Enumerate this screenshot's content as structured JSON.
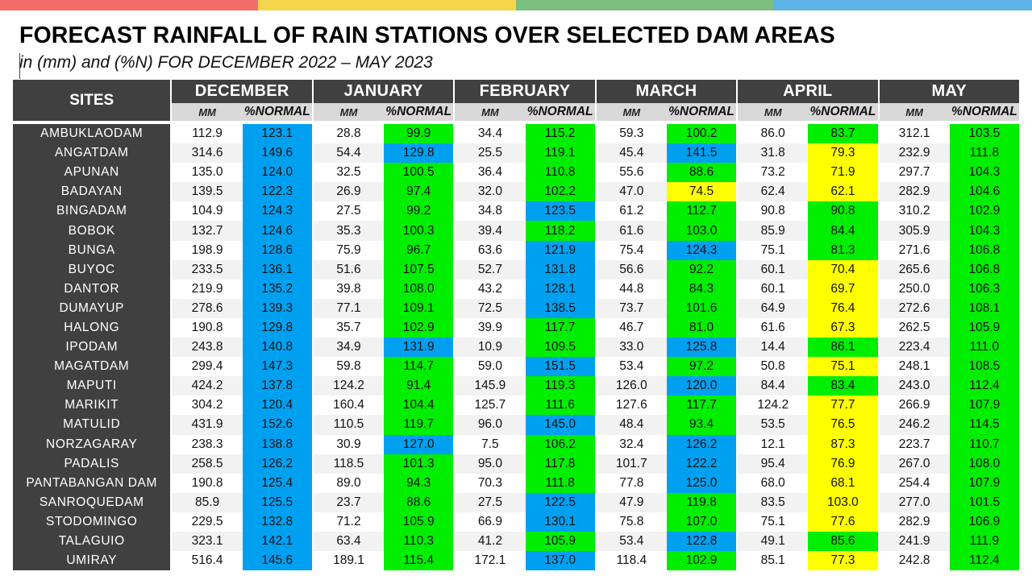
{
  "title": "FORECAST RAINFALL OF RAIN STATIONS OVER SELECTED DAM AREAS",
  "subtitle": "in (mm) and (%N) FOR DECEMBER 2022 – MAY 2023",
  "colors": {
    "top_bar": [
      "#f26b6b",
      "#f7d54a",
      "#7dbf7f",
      "#5bb3e6"
    ],
    "header_bg": "#404040",
    "subheader_bg": "#d9d9d9",
    "blue": "#00a0f0",
    "green": "#00ee00",
    "yellow": "#ffff00"
  },
  "table": {
    "sites_header": "SITES",
    "months": [
      "DECEMBER",
      "JANUARY",
      "FEBRUARY",
      "MARCH",
      "APRIL",
      "MAY"
    ],
    "sub_mm": "MM",
    "sub_pn": "%NORMAL",
    "rows": [
      {
        "site": "AMBUKLAODAM",
        "v": [
          [
            "112.9",
            "123.1",
            "b"
          ],
          [
            "28.8",
            "99.9",
            "g"
          ],
          [
            "34.4",
            "115.2",
            "g"
          ],
          [
            "59.3",
            "100.2",
            "g"
          ],
          [
            "86.0",
            "83.7",
            "g"
          ],
          [
            "312.1",
            "103.5",
            "g"
          ]
        ]
      },
      {
        "site": "ANGATDAM",
        "v": [
          [
            "314.6",
            "149.6",
            "b"
          ],
          [
            "54.4",
            "129.8",
            "b"
          ],
          [
            "25.5",
            "119.1",
            "g"
          ],
          [
            "45.4",
            "141.5",
            "b"
          ],
          [
            "31.8",
            "79.3",
            "y"
          ],
          [
            "232.9",
            "111.8",
            "g"
          ]
        ]
      },
      {
        "site": "APUNAN",
        "v": [
          [
            "135.0",
            "124.0",
            "b"
          ],
          [
            "32.5",
            "100.5",
            "g"
          ],
          [
            "36.4",
            "110.8",
            "g"
          ],
          [
            "55.6",
            "88.6",
            "g"
          ],
          [
            "73.2",
            "71.9",
            "y"
          ],
          [
            "297.7",
            "104.3",
            "g"
          ]
        ]
      },
      {
        "site": "BADAYAN",
        "v": [
          [
            "139.5",
            "122.3",
            "b"
          ],
          [
            "26.9",
            "97.4",
            "g"
          ],
          [
            "32.0",
            "102.2",
            "g"
          ],
          [
            "47.0",
            "74.5",
            "y"
          ],
          [
            "62.4",
            "62.1",
            "y"
          ],
          [
            "282.9",
            "104.6",
            "g"
          ]
        ]
      },
      {
        "site": "BINGADAM",
        "v": [
          [
            "104.9",
            "124.3",
            "b"
          ],
          [
            "27.5",
            "99.2",
            "g"
          ],
          [
            "34.8",
            "123.5",
            "b"
          ],
          [
            "61.2",
            "112.7",
            "g"
          ],
          [
            "90.8",
            "90.8",
            "g"
          ],
          [
            "310.2",
            "102.9",
            "g"
          ]
        ]
      },
      {
        "site": "BOBOK",
        "v": [
          [
            "132.7",
            "124.6",
            "b"
          ],
          [
            "35.3",
            "100.3",
            "g"
          ],
          [
            "39.4",
            "118.2",
            "g"
          ],
          [
            "61.6",
            "103.0",
            "g"
          ],
          [
            "85.9",
            "84.4",
            "g"
          ],
          [
            "305.9",
            "104.3",
            "g"
          ]
        ]
      },
      {
        "site": "BUNGA",
        "v": [
          [
            "198.9",
            "128.6",
            "b"
          ],
          [
            "75.9",
            "96.7",
            "g"
          ],
          [
            "63.6",
            "121.9",
            "b"
          ],
          [
            "75.4",
            "124.3",
            "b"
          ],
          [
            "75.1",
            "81.3",
            "g"
          ],
          [
            "271.6",
            "106.8",
            "g"
          ]
        ]
      },
      {
        "site": "BUYOC",
        "v": [
          [
            "233.5",
            "136.1",
            "b"
          ],
          [
            "51.6",
            "107.5",
            "g"
          ],
          [
            "52.7",
            "131.8",
            "b"
          ],
          [
            "56.6",
            "92.2",
            "g"
          ],
          [
            "60.1",
            "70.4",
            "y"
          ],
          [
            "265.6",
            "106.8",
            "g"
          ]
        ]
      },
      {
        "site": "DANTOR",
        "v": [
          [
            "219.9",
            "135.2",
            "b"
          ],
          [
            "39.8",
            "108.0",
            "g"
          ],
          [
            "43.2",
            "128.1",
            "b"
          ],
          [
            "44.8",
            "84.3",
            "g"
          ],
          [
            "60.1",
            "69.7",
            "y"
          ],
          [
            "250.0",
            "106.3",
            "g"
          ]
        ]
      },
      {
        "site": "DUMAYUP",
        "v": [
          [
            "278.6",
            "139.3",
            "b"
          ],
          [
            "77.1",
            "109.1",
            "g"
          ],
          [
            "72.5",
            "138.5",
            "b"
          ],
          [
            "73.7",
            "101.6",
            "g"
          ],
          [
            "64.9",
            "76.4",
            "y"
          ],
          [
            "272.6",
            "108.1",
            "g"
          ]
        ]
      },
      {
        "site": "HALONG",
        "v": [
          [
            "190.8",
            "129.8",
            "b"
          ],
          [
            "35.7",
            "102.9",
            "g"
          ],
          [
            "39.9",
            "117.7",
            "g"
          ],
          [
            "46.7",
            "81.0",
            "g"
          ],
          [
            "61.6",
            "67.3",
            "y"
          ],
          [
            "262.5",
            "105.9",
            "g"
          ]
        ]
      },
      {
        "site": "IPODAM",
        "v": [
          [
            "243.8",
            "140.8",
            "b"
          ],
          [
            "34.9",
            "131.9",
            "b"
          ],
          [
            "10.9",
            "109.5",
            "g"
          ],
          [
            "33.0",
            "125.8",
            "b"
          ],
          [
            "14.4",
            "86.1",
            "g"
          ],
          [
            "223.4",
            "111.0",
            "g"
          ]
        ]
      },
      {
        "site": "MAGATDAM",
        "v": [
          [
            "299.4",
            "147.3",
            "b"
          ],
          [
            "59.8",
            "114.7",
            "g"
          ],
          [
            "59.0",
            "151.5",
            "b"
          ],
          [
            "53.4",
            "97.2",
            "g"
          ],
          [
            "50.8",
            "75.1",
            "y"
          ],
          [
            "248.1",
            "108.5",
            "g"
          ]
        ]
      },
      {
        "site": "MAPUTI",
        "v": [
          [
            "424.2",
            "137.8",
            "b"
          ],
          [
            "124.2",
            "91.4",
            "g"
          ],
          [
            "145.9",
            "119.3",
            "g"
          ],
          [
            "126.0",
            "120.0",
            "b"
          ],
          [
            "84.4",
            "83.4",
            "g"
          ],
          [
            "243.0",
            "112.4",
            "g"
          ]
        ]
      },
      {
        "site": "MARIKIT",
        "v": [
          [
            "304.2",
            "120.4",
            "b"
          ],
          [
            "160.4",
            "104.4",
            "g"
          ],
          [
            "125.7",
            "111.6",
            "g"
          ],
          [
            "127.6",
            "117.7",
            "g"
          ],
          [
            "124.2",
            "77.7",
            "y"
          ],
          [
            "266.9",
            "107.9",
            "g"
          ]
        ]
      },
      {
        "site": "MATULID",
        "v": [
          [
            "431.9",
            "152.6",
            "b"
          ],
          [
            "110.5",
            "119.7",
            "g"
          ],
          [
            "96.0",
            "145.0",
            "b"
          ],
          [
            "48.4",
            "93.4",
            "g"
          ],
          [
            "53.5",
            "76.5",
            "y"
          ],
          [
            "246.2",
            "114.5",
            "g"
          ]
        ]
      },
      {
        "site": "NORZAGARAY",
        "v": [
          [
            "238.3",
            "138.8",
            "b"
          ],
          [
            "30.9",
            "127.0",
            "b"
          ],
          [
            "7.5",
            "106.2",
            "g"
          ],
          [
            "32.4",
            "126.2",
            "b"
          ],
          [
            "12.1",
            "87.3",
            "y"
          ],
          [
            "223.7",
            "110.7",
            "g"
          ]
        ]
      },
      {
        "site": "PADALIS",
        "v": [
          [
            "258.5",
            "126.2",
            "b"
          ],
          [
            "118.5",
            "101.3",
            "g"
          ],
          [
            "95.0",
            "117.8",
            "g"
          ],
          [
            "101.7",
            "122.2",
            "b"
          ],
          [
            "95.4",
            "76.9",
            "y"
          ],
          [
            "267.0",
            "108.0",
            "g"
          ]
        ]
      },
      {
        "site": "PANTABANGAN DAM",
        "v": [
          [
            "190.8",
            "125.4",
            "b"
          ],
          [
            "89.0",
            "94.3",
            "g"
          ],
          [
            "70.3",
            "111.8",
            "g"
          ],
          [
            "77.8",
            "125.0",
            "b"
          ],
          [
            "68.0",
            "68.1",
            "y"
          ],
          [
            "254.4",
            "107.9",
            "g"
          ]
        ]
      },
      {
        "site": "SANROQUEDAM",
        "v": [
          [
            "85.9",
            "125.5",
            "b"
          ],
          [
            "23.7",
            "88.6",
            "g"
          ],
          [
            "27.5",
            "122.5",
            "b"
          ],
          [
            "47.9",
            "119.8",
            "g"
          ],
          [
            "83.5",
            "103.0",
            "y"
          ],
          [
            "277.0",
            "101.5",
            "g"
          ]
        ]
      },
      {
        "site": "STODOMINGO",
        "v": [
          [
            "229.5",
            "132.8",
            "b"
          ],
          [
            "71.2",
            "105.9",
            "g"
          ],
          [
            "66.9",
            "130.1",
            "b"
          ],
          [
            "75.8",
            "107.0",
            "g"
          ],
          [
            "75.1",
            "77.6",
            "y"
          ],
          [
            "282.9",
            "106.9",
            "g"
          ]
        ]
      },
      {
        "site": "TALAGUIO",
        "v": [
          [
            "323.1",
            "142.1",
            "b"
          ],
          [
            "63.4",
            "110.3",
            "g"
          ],
          [
            "41.2",
            "105.9",
            "g"
          ],
          [
            "53.4",
            "122.8",
            "b"
          ],
          [
            "49.1",
            "85.6",
            "g"
          ],
          [
            "241.9",
            "111.9",
            "g"
          ]
        ]
      },
      {
        "site": "UMIRAY",
        "v": [
          [
            "516.4",
            "145.6",
            "b"
          ],
          [
            "189.1",
            "115.4",
            "g"
          ],
          [
            "172.1",
            "137.0",
            "b"
          ],
          [
            "118.4",
            "102.9",
            "g"
          ],
          [
            "85.1",
            "77.3",
            "y"
          ],
          [
            "242.8",
            "112.4",
            "g"
          ]
        ]
      }
    ]
  }
}
